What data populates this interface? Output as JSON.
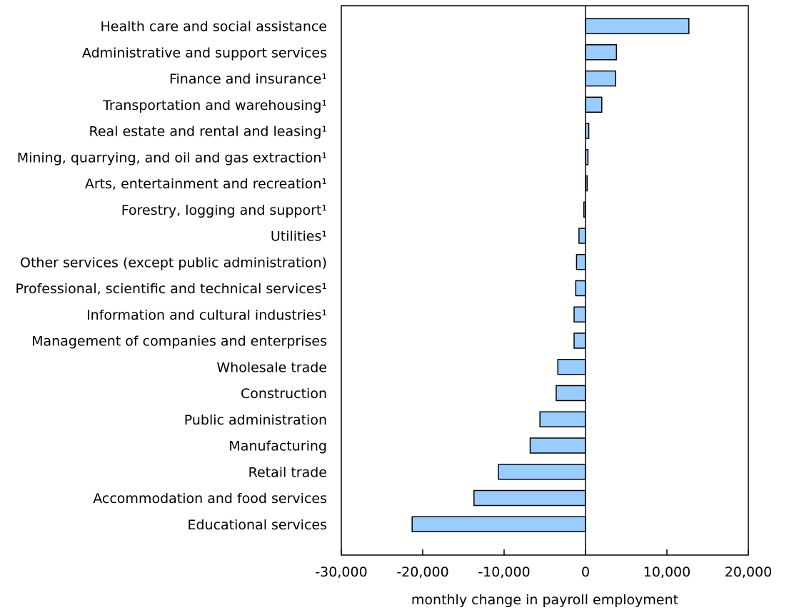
{
  "chart_data": {
    "type": "bar",
    "orientation": "horizontal",
    "categories": [
      "Health care and social assistance",
      "Administrative and support services",
      "Finance and insurance¹",
      "Transportation and warehousing¹",
      "Real estate and rental and leasing¹",
      "Mining, quarrying, and oil and gas extraction¹",
      "Arts, entertainment and recreation¹",
      "Forestry, logging and support¹",
      "Utilities¹",
      "Other services (except public administration)",
      "Professional, scientific and technical services¹",
      "Information and cultural industries¹",
      "Management of companies and enterprises",
      "Wholesale trade",
      "Construction",
      "Public administration",
      "Manufacturing",
      "Retail trade",
      "Accommodation and food services",
      "Educational services"
    ],
    "values": [
      12700,
      3800,
      3700,
      2000,
      400,
      300,
      200,
      -200,
      -800,
      -1100,
      -1200,
      -1400,
      -1400,
      -3400,
      -3600,
      -5600,
      -6800,
      -10700,
      -13700,
      -21300
    ],
    "xlabel": "monthly change in payroll employment",
    "xlim": [
      -30000,
      20000
    ],
    "xticks": [
      -30000,
      -20000,
      -10000,
      0,
      10000,
      20000
    ],
    "xtick_labels": [
      "-30,000",
      "-20,000",
      "-10,000",
      "0",
      "10,000",
      "20,000"
    ],
    "bar_color": "#99ccff",
    "bar_edge_color": "#000000",
    "grid": false,
    "legend": "none"
  }
}
